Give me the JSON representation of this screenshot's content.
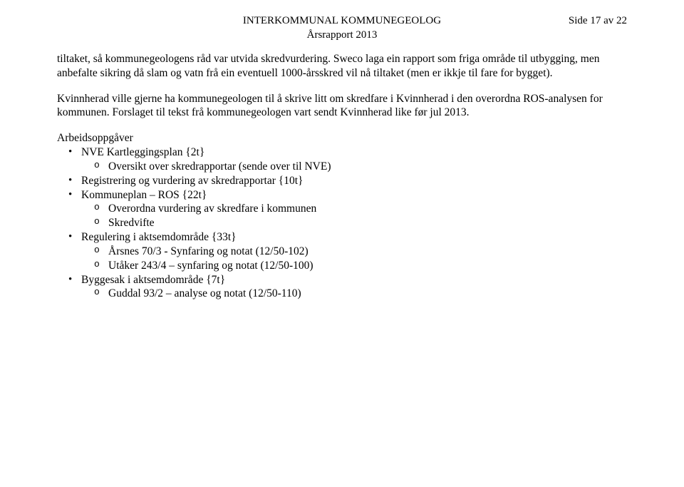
{
  "header": {
    "line1": "INTERKOMMUNAL KOMMUNEGEOLOG",
    "line2": "Årsrapport 2013",
    "side": "Side 17 av 22"
  },
  "paragraphs": {
    "p1": "tiltaket, så kommunegeologens råd var utvida skredvurdering. Sweco laga ein rapport som friga område til utbygging, men anbefalte sikring då slam og vatn frå ein eventuell 1000-årsskred vil nå tiltaket (men er ikkje til fare for bygget).",
    "p2": "Kvinnherad ville gjerne ha kommunegeologen til å skrive litt om skredfare i Kvinnherad i den overordna ROS-analysen for kommunen. Forslaget til tekst frå kommunegeologen vart sendt Kvinnherad like før jul 2013."
  },
  "tasks": {
    "title": "Arbeidsoppgåver",
    "items": [
      {
        "label": "NVE Kartleggingsplan {2t}",
        "sub": [
          "Oversikt over skredrapportar (sende over til NVE)"
        ]
      },
      {
        "label": "Registrering og vurdering av skredrapportar {10t}",
        "sub": []
      },
      {
        "label": "Kommuneplan – ROS {22t}",
        "sub": [
          "Overordna vurdering av skredfare i kommunen",
          "Skredvifte"
        ]
      },
      {
        "label": "Regulering i aktsemdområde {33t}",
        "sub": [
          "Årsnes 70/3 - Synfaring og notat (12/50-102)",
          "Utåker 243/4 – synfaring og notat (12/50-100)"
        ]
      },
      {
        "label": "Byggesak i aktsemdområde {7t}",
        "sub": [
          "Guddal 93/2 – analyse og notat (12/50-110)"
        ]
      }
    ]
  }
}
